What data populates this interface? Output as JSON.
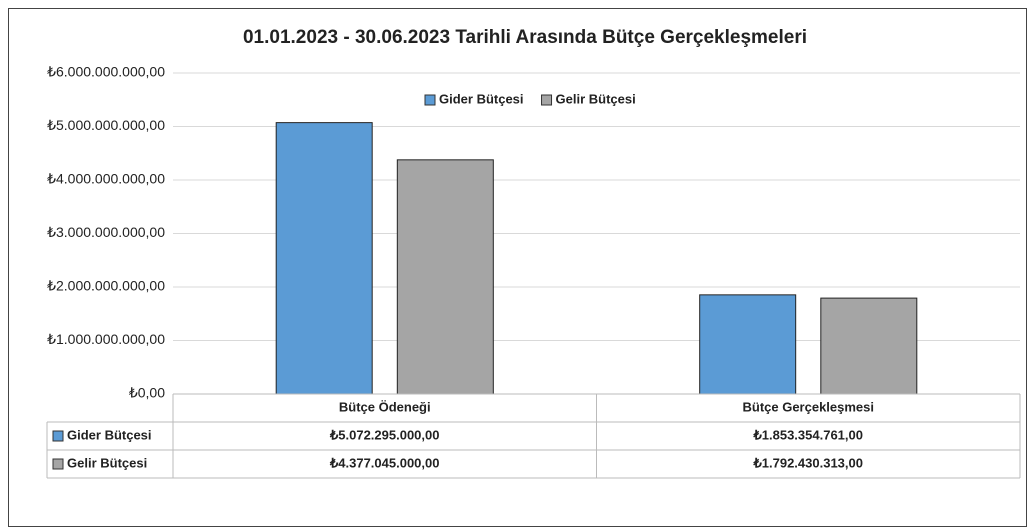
{
  "chart_data": {
    "type": "bar",
    "title": "01.01.2023 - 30.06.2023 Tarihli Arasında  Bütçe Gerçekleşmeleri",
    "categories": [
      "Bütçe Ödeneği",
      "Bütçe Gerçekleşmesi"
    ],
    "series": [
      {
        "name": "Gider Bütçesi",
        "color": "#5b9bd5",
        "values": [
          5072295000,
          1853354761
        ],
        "value_labels": [
          "₺5.072.295.000,00",
          "₺1.853.354.761,00"
        ]
      },
      {
        "name": "Gelir Bütçesi",
        "color": "#a5a5a5",
        "values": [
          4377045000,
          1792430313
        ],
        "value_labels": [
          "₺4.377.045.000,00",
          "₺1.792.430.313,00"
        ]
      }
    ],
    "ylim": [
      0,
      6000000000
    ],
    "yticks": [
      {
        "value": 0,
        "label": "₺0,00"
      },
      {
        "value": 1000000000,
        "label": "₺1.000.000.000,00"
      },
      {
        "value": 2000000000,
        "label": "₺2.000.000.000,00"
      },
      {
        "value": 3000000000,
        "label": "₺3.000.000.000,00"
      },
      {
        "value": 4000000000,
        "label": "₺4.000.000.000,00"
      },
      {
        "value": 5000000000,
        "label": "₺5.000.000.000,00"
      },
      {
        "value": 6000000000,
        "label": "₺6.000.000.000,00"
      }
    ],
    "grid": true,
    "legend": "top"
  }
}
